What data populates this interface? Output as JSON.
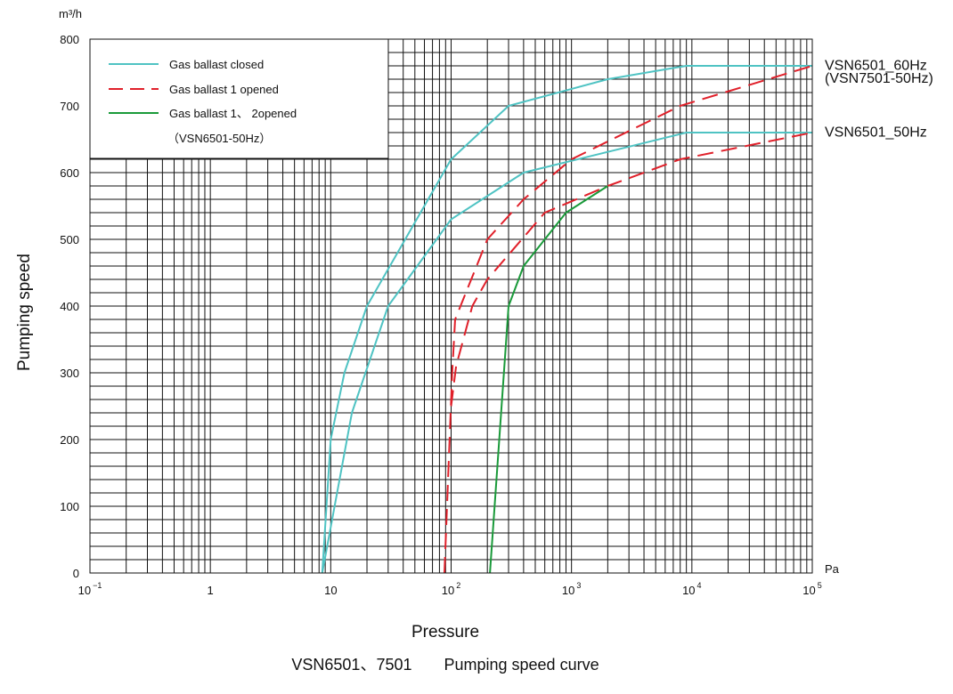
{
  "chart_data": {
    "type": "line",
    "title": "VSN6501、7501　　Pumping speed curve",
    "xlabel": "Pressure",
    "ylabel": "Pumping speed",
    "y_unit": "m³/h",
    "x_unit": "Pa",
    "x_scale": "log",
    "xlim": [
      0.1,
      100000
    ],
    "ylim": [
      0,
      800
    ],
    "y_ticks": [
      "0",
      "100",
      "200",
      "300",
      "400",
      "500",
      "600",
      "700",
      "800"
    ],
    "x_ticks": [
      {
        "base": "10",
        "exp": "−1"
      },
      {
        "base": "1",
        "exp": ""
      },
      {
        "base": "10",
        "exp": ""
      },
      {
        "base": "10",
        "exp": "2"
      },
      {
        "base": "10",
        "exp": "3"
      },
      {
        "base": "10",
        "exp": "4"
      },
      {
        "base": "10",
        "exp": "5"
      }
    ],
    "legend": [
      {
        "label": "Gas ballast closed",
        "color": "#4fc3c3",
        "dash": "solid"
      },
      {
        "label": "Gas ballast 1 opened",
        "color": "#e0202a",
        "dash": "dashed"
      },
      {
        "label": "Gas ballast 1、 2opened",
        "color": "#1a9a3a",
        "dash": "solid"
      },
      {
        "label": "（VSN6501-50Hz）",
        "color": "",
        "dash": "none"
      }
    ],
    "side_labels": [
      {
        "text": "VSN6501_60Hz",
        "y": 762
      },
      {
        "text": "(VSN7501-50Hz)",
        "y": 743
      },
      {
        "text": "VSN6501_50Hz",
        "y": 662
      }
    ],
    "series": [
      {
        "name": "Gas ballast closed (60Hz)",
        "color": "#4fc3c3",
        "dash": "solid",
        "x": [
          8.5,
          10,
          13,
          20,
          100,
          300,
          2000,
          9000,
          100000
        ],
        "y": [
          0,
          200,
          300,
          400,
          620,
          700,
          740,
          760,
          760
        ]
      },
      {
        "name": "Gas ballast closed (50Hz)",
        "color": "#4fc3c3",
        "dash": "solid",
        "x": [
          8.5,
          15,
          30,
          100,
          400,
          9000,
          100000
        ],
        "y": [
          0,
          240,
          400,
          530,
          600,
          660,
          660
        ]
      },
      {
        "name": "Gas ballast 1 opened (60Hz)",
        "color": "#e0202a",
        "dash": "dashed",
        "x": [
          88,
          102,
          108,
          200,
          400,
          1000,
          8000,
          100000
        ],
        "y": [
          0,
          300,
          380,
          500,
          560,
          620,
          700,
          760
        ]
      },
      {
        "name": "Gas ballast 1 opened (50Hz)",
        "color": "#e0202a",
        "dash": "dashed",
        "x": [
          100,
          110,
          150,
          200,
          600,
          2000,
          8000,
          100000
        ],
        "y": [
          250,
          310,
          400,
          440,
          540,
          580,
          620,
          660
        ]
      },
      {
        "name": "Gas ballast 1、2 opened (VSN6501-50Hz)",
        "color": "#1a9a3a",
        "dash": "solid",
        "x": [
          210,
          300,
          400,
          900,
          2000
        ],
        "y": [
          0,
          400,
          460,
          540,
          580
        ]
      }
    ]
  }
}
